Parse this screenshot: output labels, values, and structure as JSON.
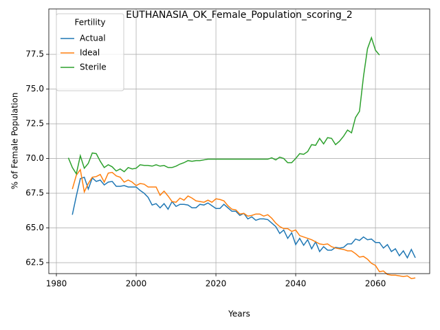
{
  "chart_data": {
    "type": "line",
    "title": "EUTHANASIA_OK_Female_Population_scoring_2",
    "x_label": "Years",
    "y_label": "% of Female Population",
    "legend_title": "Fertility",
    "legend": "upper left",
    "grid": true,
    "xlim": [
      1978.1,
      2073.6
    ],
    "ylim": [
      61.71,
      80.77
    ],
    "xticks": [
      1980,
      2000,
      2020,
      2040,
      2060
    ],
    "yticks": [
      62.5,
      {
        "value": 65,
        "label": "65.0"
      },
      67.5,
      {
        "value": 70,
        "label": "70.0"
      },
      72.5,
      {
        "value": 75,
        "label": "75.0"
      },
      77.5
    ],
    "series": [
      {
        "name": "Actual",
        "color": "#1f77b4",
        "x": [
          1984,
          1985,
          1986,
          1987,
          1988,
          1989,
          1990,
          1991,
          1992,
          1993,
          1994,
          1995,
          1996,
          1997,
          1998,
          1999,
          2000,
          2001,
          2002,
          2003,
          2004,
          2005,
          2006,
          2007,
          2008,
          2009,
          2010,
          2011,
          2012,
          2013,
          2014,
          2015,
          2016,
          2017,
          2018,
          2019,
          2020,
          2021,
          2022,
          2023,
          2024,
          2025,
          2026,
          2027,
          2028,
          2029,
          2030,
          2031,
          2032,
          2033,
          2034,
          2035,
          2036,
          2037,
          2038,
          2039,
          2040,
          2041,
          2042,
          2043,
          2044,
          2045,
          2046,
          2047,
          2048,
          2049,
          2050,
          2051,
          2052,
          2053,
          2054,
          2055,
          2056,
          2057,
          2058,
          2059,
          2060,
          2061,
          2062,
          2063,
          2064,
          2065,
          2066,
          2067,
          2068,
          2069,
          2070
        ],
        "values": [
          65.95,
          67.3,
          68.55,
          68.65,
          67.8,
          68.6,
          68.35,
          68.45,
          68.1,
          68.3,
          68.35,
          68.0,
          68.0,
          68.05,
          67.95,
          67.95,
          67.95,
          67.7,
          67.5,
          67.2,
          66.65,
          66.75,
          66.45,
          66.75,
          66.35,
          66.9,
          66.55,
          66.7,
          66.7,
          66.65,
          66.45,
          66.45,
          66.7,
          66.65,
          66.8,
          66.6,
          66.4,
          66.4,
          66.7,
          66.45,
          66.2,
          66.2,
          65.9,
          66.05,
          65.65,
          65.8,
          65.55,
          65.65,
          65.65,
          65.6,
          65.35,
          65.1,
          64.6,
          64.85,
          64.25,
          64.65,
          63.8,
          64.25,
          63.75,
          64.15,
          63.5,
          64.0,
          63.3,
          63.65,
          63.4,
          63.4,
          63.6,
          63.55,
          63.6,
          63.85,
          63.85,
          64.2,
          64.1,
          64.35,
          64.15,
          64.2,
          63.95,
          63.95,
          63.55,
          63.8,
          63.3,
          63.5,
          63.0,
          63.35,
          62.85,
          63.45,
          62.85
        ]
      },
      {
        "name": "Ideal",
        "color": "#ff7f0e",
        "x": [
          1984,
          1985,
          1986,
          1987,
          1988,
          1989,
          1990,
          1991,
          1992,
          1993,
          1994,
          1995,
          1996,
          1997,
          1998,
          1999,
          2000,
          2001,
          2002,
          2003,
          2004,
          2005,
          2006,
          2007,
          2008,
          2009,
          2010,
          2011,
          2012,
          2013,
          2014,
          2015,
          2016,
          2017,
          2018,
          2019,
          2020,
          2021,
          2022,
          2023,
          2024,
          2025,
          2026,
          2027,
          2028,
          2029,
          2030,
          2031,
          2032,
          2033,
          2034,
          2035,
          2036,
          2037,
          2038,
          2039,
          2040,
          2041,
          2042,
          2043,
          2044,
          2045,
          2046,
          2047,
          2048,
          2049,
          2050,
          2051,
          2052,
          2053,
          2054,
          2055,
          2056,
          2057,
          2058,
          2059,
          2060,
          2061,
          2062,
          2063,
          2064,
          2065,
          2066,
          2067,
          2068,
          2069,
          2070
        ],
        "values": [
          67.8,
          68.8,
          69.2,
          67.6,
          68.2,
          68.65,
          68.7,
          68.85,
          68.3,
          68.95,
          69.0,
          68.75,
          68.65,
          68.3,
          68.45,
          68.3,
          68.05,
          68.2,
          68.15,
          67.95,
          67.95,
          67.95,
          67.35,
          67.65,
          67.3,
          66.9,
          66.85,
          67.15,
          67.0,
          67.3,
          67.15,
          66.95,
          66.9,
          66.85,
          67.0,
          66.85,
          67.1,
          67.05,
          66.95,
          66.6,
          66.35,
          66.3,
          66.0,
          66.05,
          65.85,
          65.9,
          66.0,
          66.0,
          65.85,
          65.95,
          65.7,
          65.35,
          65.1,
          64.95,
          64.95,
          64.75,
          64.85,
          64.45,
          64.35,
          64.25,
          64.15,
          64.0,
          63.85,
          63.8,
          63.85,
          63.65,
          63.55,
          63.5,
          63.45,
          63.35,
          63.35,
          63.15,
          62.9,
          62.95,
          62.75,
          62.45,
          62.3,
          61.85,
          61.9,
          61.65,
          61.6,
          61.6,
          61.55,
          61.5,
          61.55,
          61.35,
          61.4
        ]
      },
      {
        "name": "Sterile",
        "color": "#2ca02c",
        "x": [
          1983,
          1984,
          1985,
          1986,
          1987,
          1988,
          1989,
          1990,
          1991,
          1992,
          1993,
          1994,
          1995,
          1996,
          1997,
          1998,
          1999,
          2000,
          2001,
          2002,
          2003,
          2004,
          2005,
          2006,
          2007,
          2008,
          2009,
          2010,
          2011,
          2012,
          2013,
          2014,
          2015,
          2016,
          2017,
          2018,
          2019,
          2020,
          2021,
          2022,
          2023,
          2024,
          2025,
          2026,
          2027,
          2028,
          2029,
          2030,
          2031,
          2032,
          2033,
          2034,
          2035,
          2036,
          2037,
          2038,
          2039,
          2040,
          2041,
          2042,
          2043,
          2044,
          2045,
          2046,
          2047,
          2048,
          2049,
          2050,
          2051,
          2052,
          2053,
          2054,
          2055,
          2056,
          2057,
          2058,
          2059,
          2060,
          2061
        ],
        "values": [
          70.05,
          69.35,
          68.9,
          70.2,
          69.3,
          69.65,
          70.4,
          70.35,
          69.8,
          69.35,
          69.55,
          69.4,
          69.1,
          69.25,
          69.05,
          69.35,
          69.25,
          69.3,
          69.55,
          69.5,
          69.5,
          69.45,
          69.55,
          69.45,
          69.5,
          69.35,
          69.35,
          69.45,
          69.6,
          69.7,
          69.85,
          69.8,
          69.85,
          69.85,
          69.9,
          69.95,
          69.95,
          69.95,
          69.95,
          69.95,
          69.95,
          69.95,
          69.95,
          69.95,
          69.95,
          69.95,
          69.95,
          69.95,
          69.95,
          69.95,
          69.95,
          70.05,
          69.9,
          70.1,
          70.0,
          69.7,
          69.7,
          70.0,
          70.35,
          70.3,
          70.5,
          71.0,
          70.95,
          71.45,
          71.05,
          71.5,
          71.45,
          71.0,
          71.25,
          71.6,
          72.05,
          71.85,
          72.95,
          73.4,
          75.9,
          77.9,
          78.7,
          77.8,
          77.45
        ]
      }
    ]
  }
}
